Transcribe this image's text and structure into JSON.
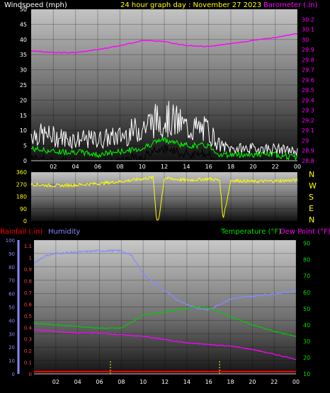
{
  "chart_data": [
    {
      "type": "line",
      "title": "24 hour graph day : November 27 2023",
      "ylabel": "Windspeed (mph)",
      "y2label": "Barometer (.in)",
      "x_ticks": [
        "02",
        "04",
        "06",
        "08",
        "10",
        "12",
        "14",
        "16",
        "18",
        "20",
        "22",
        "00"
      ],
      "ylim": [
        0,
        50
      ],
      "y_ticks": [
        0,
        5,
        10,
        15,
        20,
        25,
        30,
        35,
        40,
        45,
        50
      ],
      "y2lim": [
        28.8,
        30.3
      ],
      "y2_ticks": [
        "28.8",
        "28.9",
        "29",
        "29.1",
        "29.2",
        "29.3",
        "29.4",
        "29.5",
        "29.6",
        "29.7",
        "29.8",
        "29.9",
        "30",
        "30.1",
        "30.2"
      ],
      "series": [
        {
          "role": "gust",
          "color": "#ffffff",
          "x": [
            0,
            2,
            4,
            6,
            8,
            10,
            11,
            12,
            13,
            14,
            16,
            17,
            18,
            20,
            22,
            24
          ],
          "values": [
            9,
            8,
            7,
            7,
            8,
            11,
            13,
            14,
            13,
            11,
            10,
            5,
            4,
            4,
            4,
            3
          ]
        },
        {
          "role": "average",
          "color": "#00ff00",
          "x": [
            0,
            2,
            4,
            6,
            8,
            10,
            11,
            12,
            13,
            14,
            16,
            17,
            18,
            20,
            22,
            24
          ],
          "values": [
            4,
            3,
            3,
            2,
            3,
            4,
            6,
            7,
            6,
            5,
            5,
            2,
            2,
            2,
            2,
            1
          ]
        },
        {
          "role": "pressure",
          "color": "#ff00ff",
          "x": [
            0,
            2,
            4,
            6,
            8,
            10,
            12,
            14,
            16,
            18,
            20,
            22,
            24
          ],
          "values": [
            29.89,
            29.87,
            29.87,
            29.9,
            29.94,
            29.99,
            29.98,
            29.94,
            29.93,
            29.96,
            29.99,
            30.02,
            30.06
          ]
        }
      ]
    },
    {
      "type": "scatter",
      "ylabel": "",
      "ylim": [
        0,
        360
      ],
      "y_ticks": [
        0,
        90,
        180,
        270,
        360
      ],
      "compass": [
        "N",
        "W",
        "S",
        "E",
        "N"
      ],
      "x": [
        0,
        2,
        4,
        6,
        8,
        10,
        11,
        11.3,
        11.5,
        12,
        14,
        16,
        17,
        17.3,
        18,
        20,
        22,
        24
      ],
      "values": [
        270,
        260,
        265,
        275,
        290,
        310,
        320,
        5,
        10,
        315,
        300,
        310,
        300,
        10,
        300,
        290,
        295,
        300
      ],
      "color": "#ffff00"
    },
    {
      "type": "line",
      "legend_left": [
        "Rainfall (.in)",
        "Humidity"
      ],
      "legend_right": [
        "Temperature (°F)",
        "Dew Point (°F)"
      ],
      "legend_colors": {
        "rainfall": "#ff0000",
        "humidity": "#8888ff",
        "temperature": "#00cc00",
        "dew_point": "#ff00ff"
      },
      "x_ticks": [
        "02",
        "04",
        "06",
        "08",
        "10",
        "12",
        "14",
        "16",
        "18",
        "20",
        "22",
        "00"
      ],
      "rain_ticks": [
        "0",
        "0.1",
        "0.2",
        "0.3",
        "0.4",
        "0.5",
        "0.6",
        "0.7",
        "0.8",
        "0.9",
        "1",
        "1.1"
      ],
      "rain_lim": [
        0,
        1.15
      ],
      "humidity_ticks": [
        0,
        10,
        20,
        30,
        40,
        50,
        60,
        70,
        80,
        90,
        100
      ],
      "humidity_lim": [
        0,
        100
      ],
      "temp_ticks": [
        10,
        20,
        30,
        40,
        50,
        60,
        70,
        80,
        90
      ],
      "temp_lim": [
        10,
        92
      ],
      "series": [
        {
          "name": "Humidity",
          "x": [
            0,
            1,
            2,
            4,
            6,
            8,
            9,
            10,
            11,
            12,
            13,
            14,
            15,
            16,
            17,
            18,
            20,
            22,
            24
          ],
          "values": [
            83,
            88,
            90,
            91,
            92,
            92,
            88,
            75,
            68,
            62,
            56,
            52,
            49,
            48,
            52,
            56,
            58,
            60,
            62
          ]
        },
        {
          "name": "Temperature",
          "x": [
            0,
            2,
            4,
            6,
            7,
            8,
            9,
            10,
            12,
            14,
            15,
            16,
            17,
            18,
            20,
            22,
            24
          ],
          "values": [
            41,
            40,
            39,
            38,
            38,
            38,
            42,
            46,
            48,
            50,
            51,
            50,
            48,
            45,
            40,
            36,
            33
          ]
        },
        {
          "name": "Dew Point",
          "x": [
            0,
            2,
            4,
            6,
            8,
            10,
            12,
            14,
            16,
            18,
            20,
            22,
            24
          ],
          "values": [
            37,
            36,
            35,
            35,
            34,
            33,
            31,
            29,
            28,
            27,
            25,
            22,
            19
          ]
        },
        {
          "name": "Rainfall",
          "x": [
            0,
            24
          ],
          "values": [
            0.02,
            0.02
          ]
        }
      ]
    }
  ]
}
